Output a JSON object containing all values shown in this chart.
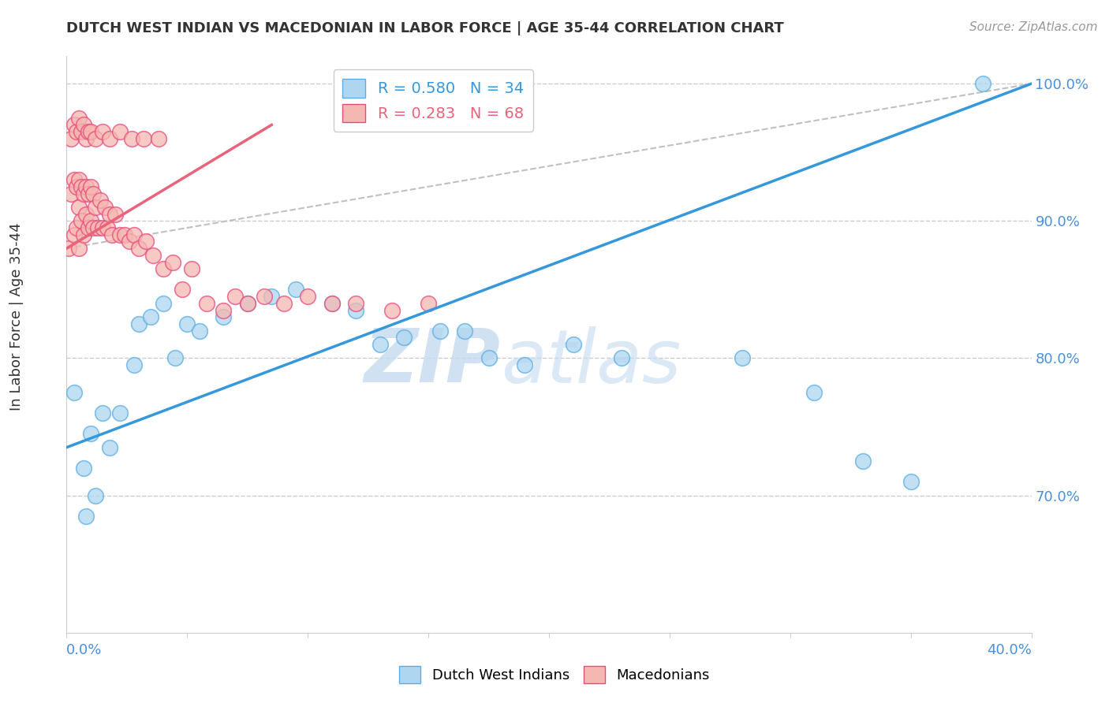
{
  "title": "DUTCH WEST INDIAN VS MACEDONIAN IN LABOR FORCE | AGE 35-44 CORRELATION CHART",
  "source": "Source: ZipAtlas.com",
  "ylabel": "In Labor Force | Age 35-44",
  "legend_blue_r": "R = 0.580",
  "legend_blue_n": "N = 34",
  "legend_pink_r": "R = 0.283",
  "legend_pink_n": "N = 68",
  "watermark_zip": "ZIP",
  "watermark_atlas": "atlas",
  "blue_color": "#AED6F1",
  "blue_edge_color": "#5DADE2",
  "pink_color": "#F5B7B1",
  "pink_edge_color": "#E74C7C",
  "blue_line_color": "#3498DB",
  "pink_line_color": "#E8647A",
  "ref_line_color": "#C0C0C0",
  "xmin": 0.0,
  "xmax": 0.4,
  "ymin": 0.6,
  "ymax": 1.02,
  "yticks": [
    0.7,
    0.8,
    0.9,
    1.0
  ],
  "ytick_labels": [
    "70.0%",
    "80.0%",
    "90.0%",
    "100.0%"
  ],
  "background_color": "#FFFFFF",
  "grid_color": "#CCCCCC",
  "title_color": "#333333",
  "axis_label_color": "#4A90D9",
  "blue_scatter_x": [
    0.003,
    0.007,
    0.008,
    0.01,
    0.012,
    0.015,
    0.018,
    0.022,
    0.028,
    0.03,
    0.035,
    0.04,
    0.045,
    0.05,
    0.055,
    0.065,
    0.075,
    0.085,
    0.095,
    0.11,
    0.12,
    0.13,
    0.14,
    0.155,
    0.165,
    0.175,
    0.19,
    0.21,
    0.23,
    0.28,
    0.31,
    0.33,
    0.35,
    0.38
  ],
  "blue_scatter_y": [
    0.775,
    0.72,
    0.685,
    0.745,
    0.7,
    0.76,
    0.735,
    0.76,
    0.795,
    0.825,
    0.83,
    0.84,
    0.8,
    0.825,
    0.82,
    0.83,
    0.84,
    0.845,
    0.85,
    0.84,
    0.835,
    0.81,
    0.815,
    0.82,
    0.82,
    0.8,
    0.795,
    0.81,
    0.8,
    0.8,
    0.775,
    0.725,
    0.71,
    1.0
  ],
  "pink_scatter_x": [
    0.001,
    0.002,
    0.003,
    0.003,
    0.004,
    0.004,
    0.005,
    0.005,
    0.005,
    0.006,
    0.006,
    0.007,
    0.007,
    0.008,
    0.008,
    0.009,
    0.009,
    0.01,
    0.01,
    0.011,
    0.011,
    0.012,
    0.013,
    0.014,
    0.015,
    0.016,
    0.017,
    0.018,
    0.019,
    0.02,
    0.022,
    0.024,
    0.026,
    0.028,
    0.03,
    0.033,
    0.036,
    0.04,
    0.044,
    0.048,
    0.052,
    0.058,
    0.065,
    0.07,
    0.075,
    0.082,
    0.09,
    0.1,
    0.11,
    0.12,
    0.135,
    0.15,
    0.002,
    0.003,
    0.004,
    0.005,
    0.006,
    0.007,
    0.008,
    0.009,
    0.01,
    0.012,
    0.015,
    0.018,
    0.022,
    0.027,
    0.032,
    0.038
  ],
  "pink_scatter_y": [
    0.88,
    0.92,
    0.93,
    0.89,
    0.925,
    0.895,
    0.93,
    0.91,
    0.88,
    0.925,
    0.9,
    0.92,
    0.89,
    0.925,
    0.905,
    0.92,
    0.895,
    0.925,
    0.9,
    0.92,
    0.895,
    0.91,
    0.895,
    0.915,
    0.895,
    0.91,
    0.895,
    0.905,
    0.89,
    0.905,
    0.89,
    0.89,
    0.885,
    0.89,
    0.88,
    0.885,
    0.875,
    0.865,
    0.87,
    0.85,
    0.865,
    0.84,
    0.835,
    0.845,
    0.84,
    0.845,
    0.84,
    0.845,
    0.84,
    0.84,
    0.835,
    0.84,
    0.96,
    0.97,
    0.965,
    0.975,
    0.965,
    0.97,
    0.96,
    0.965,
    0.965,
    0.96,
    0.965,
    0.96,
    0.965,
    0.96,
    0.96,
    0.96
  ],
  "blue_line_x": [
    0.0,
    0.4
  ],
  "blue_line_y": [
    0.735,
    1.0
  ],
  "pink_line_x": [
    0.0,
    0.085
  ],
  "pink_line_y": [
    0.88,
    0.97
  ],
  "ref_line_x": [
    0.0,
    0.4
  ],
  "ref_line_y": [
    0.88,
    1.0
  ]
}
